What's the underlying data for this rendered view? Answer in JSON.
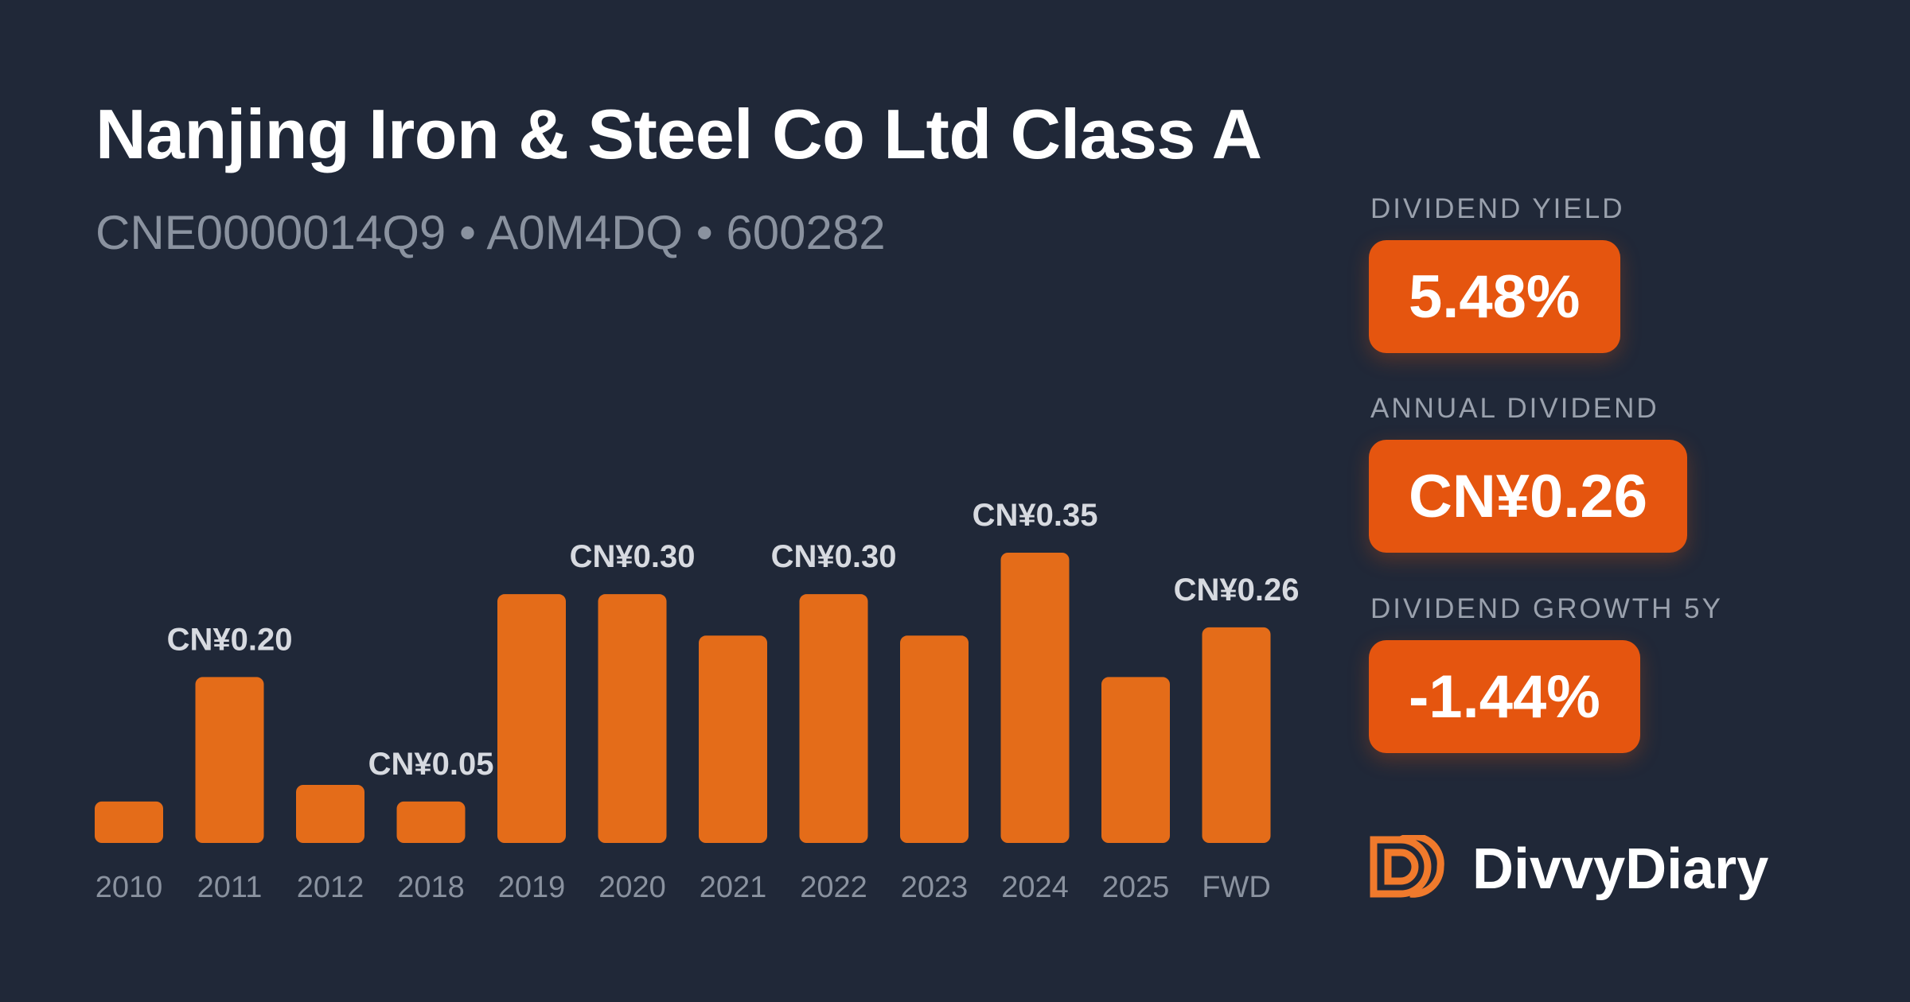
{
  "header": {
    "title": "Nanjing Iron & Steel Co Ltd Class A",
    "subtitle": "CNE0000014Q9 • A0M4DQ • 600282"
  },
  "metrics": {
    "yield_label": "DIVIDEND YIELD",
    "yield_value": "5.48%",
    "annual_label": "ANNUAL DIVIDEND",
    "annual_value": "CN¥0.26",
    "growth_label": "DIVIDEND GROWTH 5Y",
    "growth_value": "-1.44%"
  },
  "brand": {
    "name": "DivvyDiary",
    "logo_icon": "divvydiary-logo-icon"
  },
  "colors": {
    "background": "#202838",
    "bar": "#e46c19",
    "accent": "#e5550f"
  },
  "chart_data": {
    "type": "bar",
    "categories": [
      "2010",
      "2011",
      "2012",
      "2018",
      "2019",
      "2020",
      "2021",
      "2022",
      "2023",
      "2024",
      "2025",
      "FWD"
    ],
    "values": [
      0.05,
      0.2,
      0.07,
      0.05,
      0.3,
      0.3,
      0.25,
      0.3,
      0.25,
      0.35,
      0.2,
      0.26
    ],
    "data_labels": [
      "",
      "CN¥0.20",
      "",
      "CN¥0.05",
      "",
      "CN¥0.30",
      "",
      "CN¥0.30",
      "",
      "CN¥0.35",
      "",
      "CN¥0.26"
    ],
    "ylim": [
      0,
      0.35
    ],
    "grid": false
  }
}
